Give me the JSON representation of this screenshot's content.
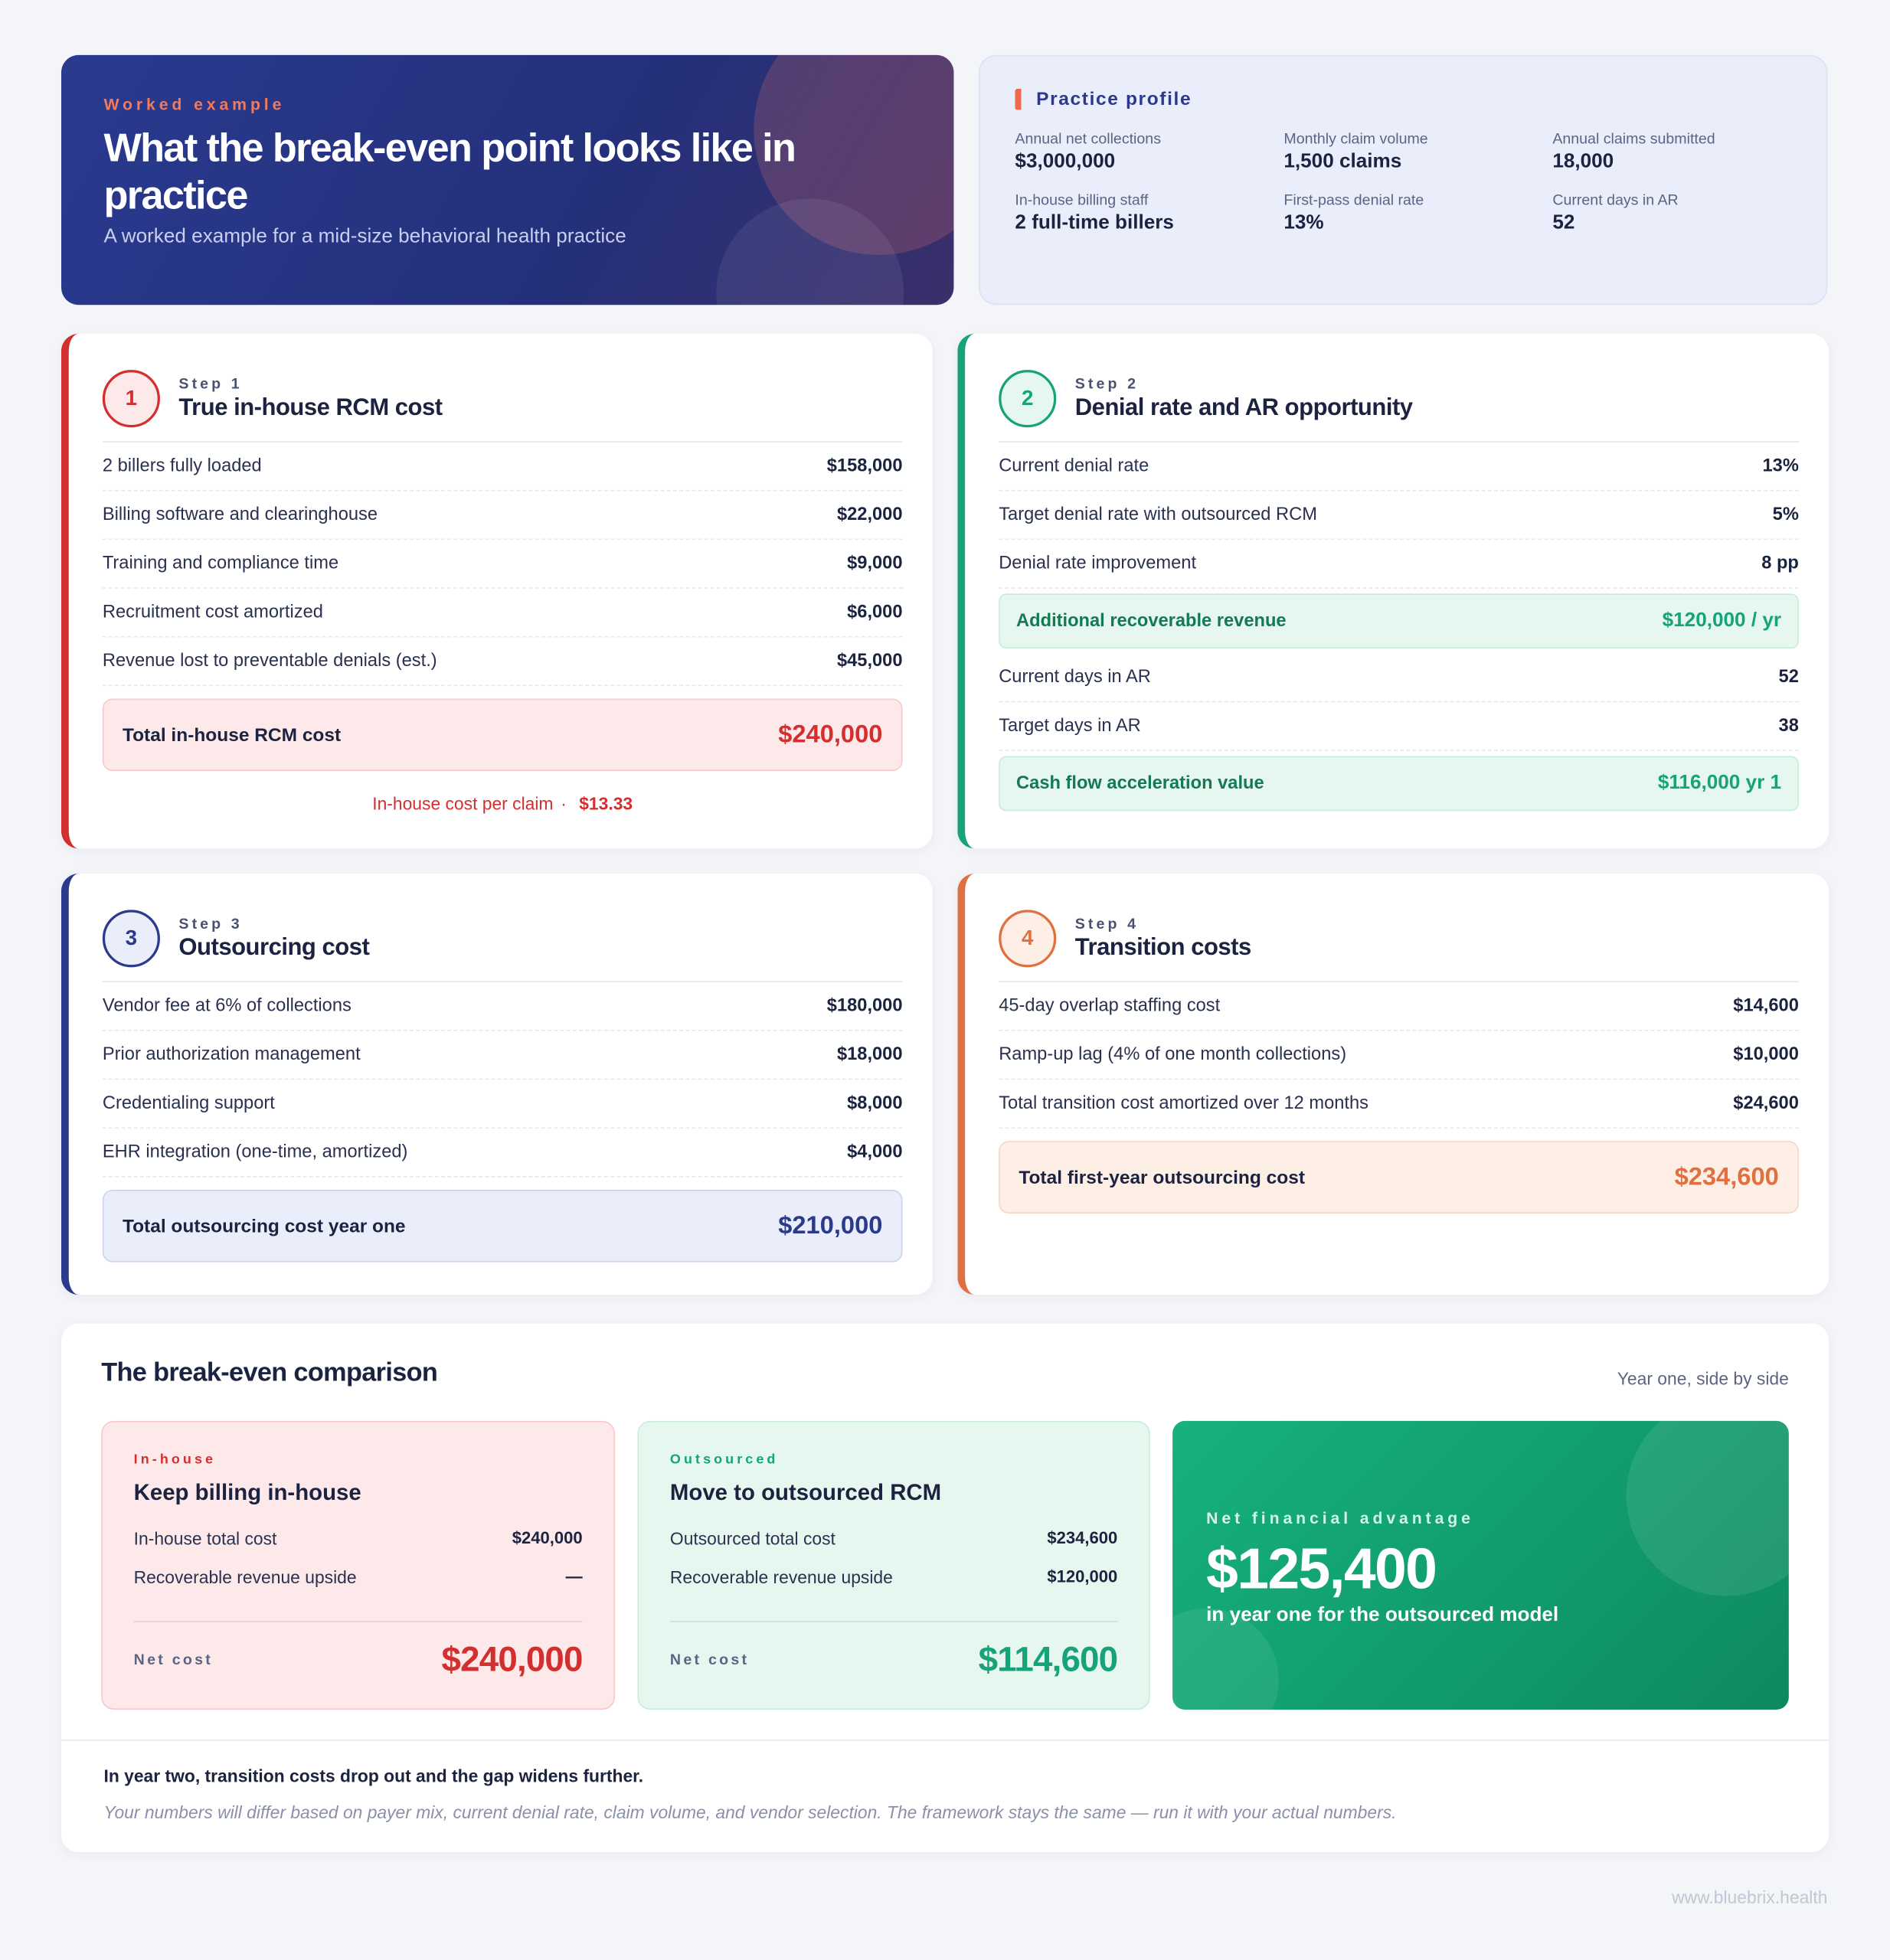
{
  "header": {
    "eyebrow": "Worked example",
    "title": "What the break-even point looks like in practice",
    "subtitle": "A worked example for a mid-size behavioral health practice"
  },
  "profile": {
    "title": "Practice profile",
    "items": [
      {
        "label": "Annual net collections",
        "value": "$3,000,000"
      },
      {
        "label": "Monthly claim volume",
        "value": "1,500 claims"
      },
      {
        "label": "Annual claims submitted",
        "value": "18,000"
      },
      {
        "label": "In-house billing staff",
        "value": "2 full-time billers"
      },
      {
        "label": "First-pass denial rate",
        "value": "13%"
      },
      {
        "label": "Current days in AR",
        "value": "52"
      }
    ]
  },
  "steps": [
    {
      "number": "1",
      "eyebrow": "Step 1",
      "title": "True in-house RCM cost",
      "color": "#d32f2f",
      "rows": [
        {
          "label": "2 billers fully loaded",
          "value": "$158,000"
        },
        {
          "label": "Billing software and clearinghouse",
          "value": "$22,000"
        },
        {
          "label": "Training and compliance time",
          "value": "$9,000"
        },
        {
          "label": "Recruitment cost amortized",
          "value": "$6,000"
        },
        {
          "label": "Revenue lost to preventable denials (est.)",
          "value": "$45,000"
        }
      ],
      "total": {
        "label": "Total in-house RCM cost",
        "value": "$240,000"
      },
      "note": {
        "label": "In-house cost per claim",
        "separator": "·",
        "value": "$13.33"
      }
    },
    {
      "number": "2",
      "eyebrow": "Step 2",
      "title": "Denial rate and AR opportunity",
      "color": "#16a37a",
      "rows": [
        {
          "label": "Current denial rate",
          "value": "13%"
        },
        {
          "label": "Target denial rate with outsourced RCM",
          "value": "5%"
        },
        {
          "label": "Denial rate improvement",
          "value": "8 pp"
        },
        {
          "label": "Additional recoverable revenue",
          "value": "$120,000 / yr",
          "highlight": true
        },
        {
          "label": "Current days in AR",
          "value": "52"
        },
        {
          "label": "Target days in AR",
          "value": "38"
        },
        {
          "label": "Cash flow acceleration value",
          "value": "$116,000 yr 1",
          "highlight": true
        }
      ]
    },
    {
      "number": "3",
      "eyebrow": "Step 3",
      "title": "Outsourcing cost",
      "color": "#2c3a8c",
      "rows": [
        {
          "label": "Vendor fee at 6% of collections",
          "value": "$180,000"
        },
        {
          "label": "Prior authorization management",
          "value": "$18,000"
        },
        {
          "label": "Credentialing support",
          "value": "$8,000"
        },
        {
          "label": "EHR integration (one-time, amortized)",
          "value": "$4,000"
        }
      ],
      "total": {
        "label": "Total outsourcing cost year one",
        "value": "$210,000"
      }
    },
    {
      "number": "4",
      "eyebrow": "Step 4",
      "title": "Transition costs",
      "color": "#e07040",
      "rows": [
        {
          "label": "45-day overlap staffing cost",
          "value": "$14,600"
        },
        {
          "label": "Ramp-up lag (4% of one month collections)",
          "value": "$10,000"
        },
        {
          "label": "Total transition cost amortized over 12 months",
          "value": "$24,600"
        }
      ],
      "total": {
        "label": "Total first-year outsourcing cost",
        "value": "$234,600"
      }
    }
  ],
  "comparison": {
    "title": "The break-even comparison",
    "note": "Year one, side by side",
    "cards": [
      {
        "eyebrow": "In-house",
        "title": "Keep billing in-house",
        "color": "#d32f2f",
        "rows": [
          {
            "label": "In-house total cost",
            "value": "$240,000"
          },
          {
            "label": "Recoverable revenue upside",
            "value": "—"
          }
        ],
        "net_label": "Net cost",
        "net_value": "$240,000"
      },
      {
        "eyebrow": "Outsourced",
        "title": "Move to outsourced RCM",
        "color": "#16a37a",
        "rows": [
          {
            "label": "Outsourced total cost",
            "value": "$234,600"
          },
          {
            "label": "Recoverable revenue upside",
            "value": "$120,000"
          }
        ],
        "net_label": "Net cost",
        "net_value": "$114,600"
      }
    ],
    "advantage": {
      "eyebrow": "Net financial advantage",
      "value": "$125,400",
      "caption": "in year one for the outsourced model"
    }
  },
  "footer": {
    "line1": "In year two, transition costs drop out and the gap widens further.",
    "line2": "Your numbers will differ based on payer mix, current denial rate, claim volume, and vendor selection. The framework stays the same — run it with your actual numbers."
  },
  "watermark": "www.bluebrix.health"
}
